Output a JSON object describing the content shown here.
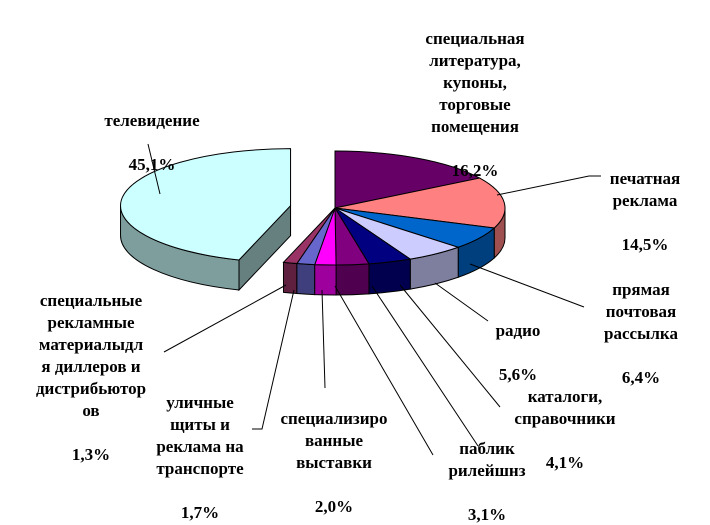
{
  "chart_data": {
    "type": "pie",
    "title": "",
    "slices": [
      {
        "label": "специальная\nлитература,\nкупоны,\nторговые\nпомещения",
        "value_label": "16,2%",
        "value": 16.2,
        "color": "#660066"
      },
      {
        "label": "печатная\nреклама",
        "value_label": "14,5%",
        "value": 14.5,
        "color": "#ff8080"
      },
      {
        "label": "прямая\nпочтовая\nрассылка",
        "value_label": "6,4%",
        "value": 6.4,
        "color": "#0066cc"
      },
      {
        "label": "радио",
        "value_label": "5,6%",
        "value": 5.6,
        "color": "#ccccff"
      },
      {
        "label": "каталоги,\nсправочники",
        "value_label": "4,1%",
        "value": 4.1,
        "color": "#000080"
      },
      {
        "label": "паблик\nрилейшнз",
        "value_label": "3,1%",
        "value": 3.1,
        "color": "#800080"
      },
      {
        "label": "специализиро\nванные\nвыставки",
        "value_label": "2,0%",
        "value": 2.0,
        "color": "#ff00ff"
      },
      {
        "label": "уличные\nщиты и\nреклама на\nтранспорте",
        "value_label": "1,7%",
        "value": 1.7,
        "color": "#6666cc"
      },
      {
        "label": "специальные\nрекламные\nматериалыдл\nя диллеров и\nдистрибьютор\nов",
        "value_label": "1,3%",
        "value": 1.3,
        "color": "#993366"
      },
      {
        "label": "телевидение",
        "value_label": "45,1%",
        "value": 45.1,
        "color": "#ccffff"
      }
    ],
    "exploded_slice": "телевидение",
    "three_d": true,
    "legend": "none"
  }
}
